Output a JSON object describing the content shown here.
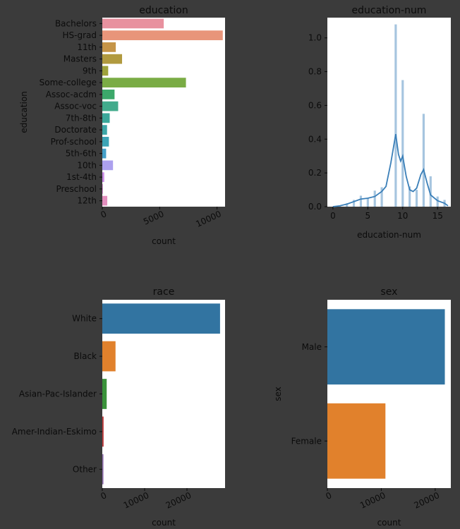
{
  "chart_data": [
    {
      "type": "bar",
      "orientation": "horizontal",
      "title": "education",
      "xlabel": "count",
      "ylabel": "education",
      "categories": [
        "Bachelors",
        "HS-grad",
        "11th",
        "Masters",
        "9th",
        "Some-college",
        "Assoc-acdm",
        "Assoc-voc",
        "7th-8th",
        "Doctorate",
        "Prof-school",
        "5th-6th",
        "10th",
        "1st-4th",
        "Preschool",
        "12th"
      ],
      "values": [
        5355,
        10501,
        1175,
        1723,
        514,
        7291,
        1067,
        1382,
        646,
        413,
        576,
        333,
        933,
        168,
        51,
        433
      ],
      "colors": [
        "#e8919f",
        "#e8957a",
        "#c59447",
        "#b19a3f",
        "#9ea23b",
        "#7aac45",
        "#3ca86a",
        "#42ab8c",
        "#3aa79a",
        "#3ca6a7",
        "#3ca4b6",
        "#45a0c9",
        "#aca0ee",
        "#c98ce6",
        "#d98ad5",
        "#e38fbe"
      ],
      "xlim": [
        0,
        10700
      ],
      "xticks": [
        "0",
        "5000",
        "10000"
      ],
      "xtick_values": [
        0,
        5000,
        10000
      ],
      "grid": false
    },
    {
      "type": "histogram",
      "title": "education-num",
      "xlabel": "education-num",
      "xlim": [
        -0.8,
        16.9
      ],
      "ylim": [
        0,
        1.12
      ],
      "xticks": [
        "0",
        "5",
        "10",
        "15"
      ],
      "xtick_values": [
        0,
        5,
        10,
        15
      ],
      "yticks": [
        "0.0",
        "0.2",
        "0.4",
        "0.6",
        "0.8",
        "1.0"
      ],
      "ytick_values": [
        0,
        0.2,
        0.4,
        0.6,
        0.8,
        1.0
      ],
      "color": "#3a7fb8",
      "bins": [
        {
          "x": 1,
          "y": 0.005
        },
        {
          "x": 2,
          "y": 0.02
        },
        {
          "x": 3,
          "y": 0.04
        },
        {
          "x": 4,
          "y": 0.065
        },
        {
          "x": 5,
          "y": 0.05
        },
        {
          "x": 6,
          "y": 0.095
        },
        {
          "x": 7,
          "y": 0.115
        },
        {
          "x": 9,
          "y": 1.08
        },
        {
          "x": 10,
          "y": 0.75
        },
        {
          "x": 11,
          "y": 0.12
        },
        {
          "x": 12,
          "y": 0.1
        },
        {
          "x": 13,
          "y": 0.55
        },
        {
          "x": 14,
          "y": 0.18
        },
        {
          "x": 15,
          "y": 0.06
        },
        {
          "x": 16,
          "y": 0.04
        }
      ],
      "kde": [
        {
          "x": 0,
          "y": 0.0
        },
        {
          "x": 1,
          "y": 0.005
        },
        {
          "x": 2,
          "y": 0.015
        },
        {
          "x": 3,
          "y": 0.03
        },
        {
          "x": 4,
          "y": 0.045
        },
        {
          "x": 5,
          "y": 0.05
        },
        {
          "x": 6,
          "y": 0.06
        },
        {
          "x": 7,
          "y": 0.09
        },
        {
          "x": 7.6,
          "y": 0.12
        },
        {
          "x": 8.3,
          "y": 0.26
        },
        {
          "x": 9,
          "y": 0.43
        },
        {
          "x": 9.4,
          "y": 0.31
        },
        {
          "x": 9.7,
          "y": 0.27
        },
        {
          "x": 10,
          "y": 0.3
        },
        {
          "x": 10.5,
          "y": 0.18
        },
        {
          "x": 11,
          "y": 0.1
        },
        {
          "x": 11.5,
          "y": 0.09
        },
        {
          "x": 12,
          "y": 0.11
        },
        {
          "x": 12.6,
          "y": 0.19
        },
        {
          "x": 13,
          "y": 0.22
        },
        {
          "x": 13.5,
          "y": 0.14
        },
        {
          "x": 14,
          "y": 0.07
        },
        {
          "x": 15,
          "y": 0.035
        },
        {
          "x": 16,
          "y": 0.02
        },
        {
          "x": 16.5,
          "y": 0.005
        }
      ],
      "grid": false
    },
    {
      "type": "bar",
      "orientation": "horizontal",
      "title": "race",
      "xlabel": "count",
      "ylabel": "",
      "categories": [
        "White",
        "Black",
        "Asian-Pac-Islander",
        "Amer-Indian-Eskimo",
        "Other"
      ],
      "values": [
        27816,
        3124,
        1039,
        311,
        271
      ],
      "colors": [
        "#3274a1",
        "#e1812c",
        "#3a923a",
        "#c03d3e",
        "#9372b2"
      ],
      "xlim": [
        0,
        29000
      ],
      "xticks": [
        "0",
        "10000",
        "20000"
      ],
      "xtick_values": [
        0,
        10000,
        20000
      ],
      "grid": false
    },
    {
      "type": "bar",
      "orientation": "horizontal",
      "title": "sex",
      "xlabel": "count",
      "ylabel": "sex",
      "categories": [
        "Male",
        "Female"
      ],
      "values": [
        21790,
        10771
      ],
      "colors": [
        "#3274a1",
        "#e1812c"
      ],
      "xlim": [
        0,
        22900
      ],
      "xticks": [
        "0",
        "10000",
        "20000"
      ],
      "xtick_values": [
        0,
        10000,
        20000
      ],
      "grid": false
    }
  ]
}
